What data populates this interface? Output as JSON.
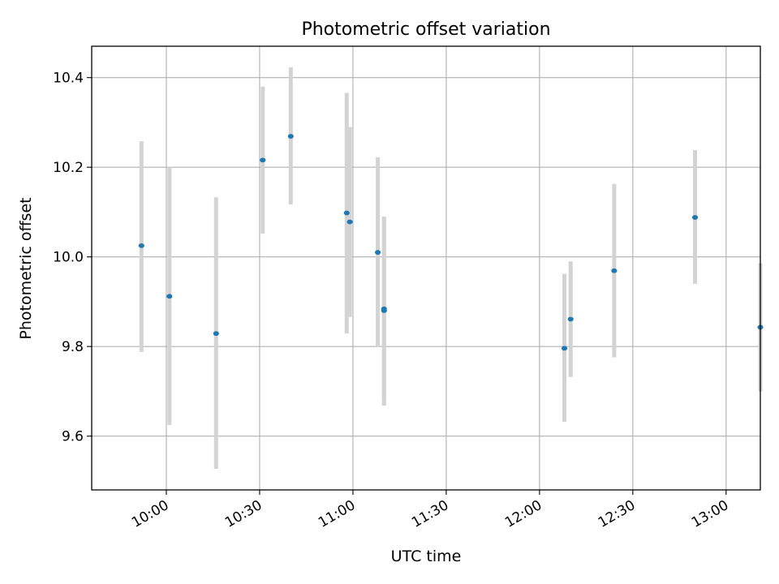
{
  "chart_data": {
    "type": "scatter",
    "title": "Photometric offset variation",
    "xlabel": "UTC time",
    "ylabel": "Photometric offset",
    "x_type": "time",
    "xlim": [
      "09:36",
      "13:11"
    ],
    "ylim": [
      9.48,
      10.47
    ],
    "x_ticks": [
      "10:00",
      "10:30",
      "11:00",
      "11:30",
      "12:00",
      "12:30",
      "13:00"
    ],
    "y_ticks": [
      9.6,
      9.8,
      10.0,
      10.2,
      10.4
    ],
    "grid": true,
    "legend": "none",
    "point_color": "#1f77b4",
    "errorbar_color": "#d3d3d3",
    "series": [
      {
        "points": [
          {
            "x": "09:52",
            "y": 10.025,
            "ylow": 9.788,
            "yhigh": 10.258
          },
          {
            "x": "10:01",
            "y": 9.912,
            "ylow": 9.625,
            "yhigh": 10.2
          },
          {
            "x": "10:16",
            "y": 9.829,
            "ylow": 9.527,
            "yhigh": 10.133
          },
          {
            "x": "10:31",
            "y": 10.216,
            "ylow": 10.052,
            "yhigh": 10.38
          },
          {
            "x": "10:40",
            "y": 10.269,
            "ylow": 10.117,
            "yhigh": 10.423
          },
          {
            "x": "10:58",
            "y": 10.098,
            "ylow": 9.829,
            "yhigh": 10.366
          },
          {
            "x": "10:59",
            "y": 10.078,
            "ylow": 9.866,
            "yhigh": 10.29
          },
          {
            "x": "11:08",
            "y": 10.01,
            "ylow": 9.799,
            "yhigh": 10.222
          },
          {
            "x": "11:10",
            "y": 9.88,
            "ylow": 9.668,
            "yhigh": 10.09
          },
          {
            "x": "11:10",
            "y": 9.884,
            "ylow": 9.68,
            "yhigh": 10.088
          },
          {
            "x": "12:08",
            "y": 9.796,
            "ylow": 9.632,
            "yhigh": 9.962
          },
          {
            "x": "12:10",
            "y": 9.861,
            "ylow": 9.732,
            "yhigh": 9.99
          },
          {
            "x": "12:24",
            "y": 9.969,
            "ylow": 9.776,
            "yhigh": 10.163
          },
          {
            "x": "12:50",
            "y": 10.088,
            "ylow": 9.94,
            "yhigh": 10.238
          },
          {
            "x": "13:11",
            "y": 9.843,
            "ylow": 9.7,
            "yhigh": 9.986
          }
        ]
      }
    ]
  }
}
